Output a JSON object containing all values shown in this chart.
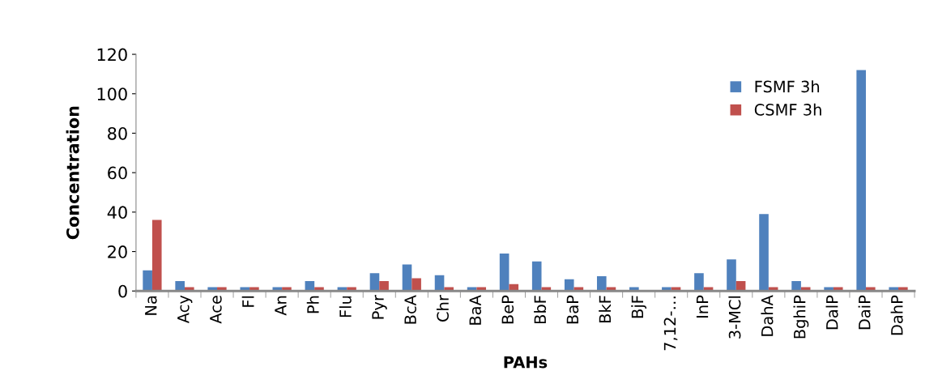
{
  "chart_data": {
    "type": "bar",
    "xlabel": "PAHs",
    "ylabel": "Concentration",
    "categories": [
      "Na",
      "Acy",
      "Ace",
      "Fl",
      "An",
      "Ph",
      "Flu",
      "Pyr",
      "BcA",
      "Chr",
      "BaA",
      "BeP",
      "BbF",
      "BaP",
      "BkF",
      "BjF",
      "7,12-…",
      "InP",
      "3-MCl",
      "DahA",
      "BghiP",
      "DalP",
      "DaiP",
      "DahP"
    ],
    "series": [
      {
        "name": "FSMF 3h",
        "color": "#4f81bd",
        "values": [
          10.5,
          5,
          2,
          2,
          2,
          5,
          2,
          9,
          13.5,
          8,
          2,
          19,
          15,
          6,
          7.5,
          2,
          2,
          9,
          16,
          39,
          5,
          2,
          112,
          2
        ]
      },
      {
        "name": "CSMF 3h",
        "color": "#c0504d",
        "values": [
          36,
          2,
          2,
          2,
          2,
          2,
          2,
          5,
          6.5,
          2,
          2,
          3.5,
          2,
          2,
          2,
          null,
          2,
          2,
          5,
          2,
          2,
          2,
          2,
          2
        ]
      }
    ],
    "ylim": [
      0,
      120
    ],
    "yticks": [
      0,
      20,
      40,
      60,
      80,
      100,
      120
    ],
    "grid": false,
    "legend": "top right"
  }
}
